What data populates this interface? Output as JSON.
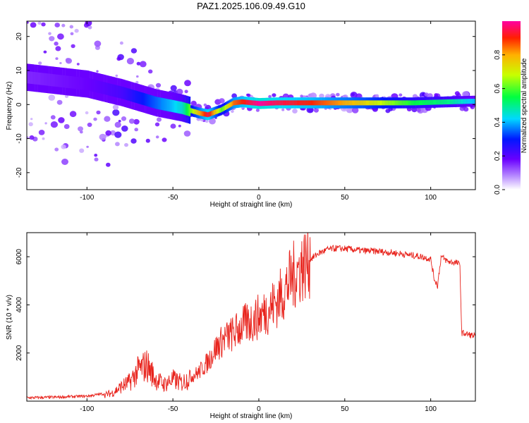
{
  "figure": {
    "title": "PAZ1.2025.106.09.49.G10"
  },
  "chart_data": [
    {
      "type": "heatmap",
      "xlabel": "Height of straight line (km)",
      "ylabel": "Frequency (Hz)",
      "xlim": [
        -135,
        126
      ],
      "ylim": [
        -25,
        24.5
      ],
      "xticks": [
        -100,
        -50,
        0,
        50,
        100
      ],
      "yticks": [
        -20,
        -10,
        0,
        10,
        20
      ],
      "colorbar": {
        "label": "Normalized spectral amplitude",
        "range": [
          0,
          1
        ],
        "ticks": [
          0.0,
          0.2,
          0.4,
          0.6,
          0.8
        ],
        "tick_labels": [
          "0.0",
          "0.2",
          "0.4",
          "0.6",
          "0.8"
        ]
      },
      "ridge": {
        "x": [
          -135,
          -100,
          -80,
          -60,
          -45,
          -35,
          -30,
          -22,
          -15,
          -10,
          0,
          10,
          30,
          60,
          90,
          110,
          126
        ],
        "frequency": [
          8,
          6,
          3.5,
          0.5,
          -1,
          -2.5,
          -3,
          -1.5,
          0.5,
          0.8,
          0.3,
          0.5,
          0.5,
          0.5,
          0.5,
          0.8,
          1
        ],
        "amplitude": [
          0.15,
          0.18,
          0.22,
          0.35,
          0.45,
          0.8,
          0.95,
          0.6,
          0.85,
          0.9,
          1.0,
          0.95,
          0.9,
          0.75,
          0.55,
          0.5,
          0.4
        ]
      }
    },
    {
      "type": "line",
      "xlabel": "Height of straight line (km)",
      "ylabel": "SNR (10 * v/v)",
      "xlim": [
        -135,
        126
      ],
      "ylim": [
        0,
        7000
      ],
      "xticks": [
        -100,
        -50,
        0,
        50,
        100
      ],
      "yticks": [
        2000,
        4000,
        6000
      ],
      "series": [
        {
          "color": "#e8231c",
          "x": [
            -135,
            -120,
            -100,
            -90,
            -85,
            -80,
            -75,
            -70,
            -65,
            -60,
            -55,
            -50,
            -45,
            -40,
            -35,
            -30,
            -25,
            -20,
            -15,
            -10,
            -5,
            0,
            5,
            10,
            15,
            20,
            25,
            30,
            35,
            40,
            45,
            50,
            55,
            60,
            70,
            80,
            90,
            95,
            100,
            102,
            104,
            106,
            110,
            115,
            117,
            118,
            120,
            126
          ],
          "values": [
            80,
            100,
            150,
            250,
            350,
            600,
            800,
            1300,
            1500,
            900,
            700,
            900,
            750,
            1000,
            1200,
            1600,
            2200,
            2600,
            2800,
            3100,
            3300,
            3500,
            3800,
            4100,
            4600,
            5200,
            5600,
            5900,
            6150,
            6300,
            6350,
            6330,
            6300,
            6250,
            6220,
            6150,
            6050,
            6000,
            5900,
            5100,
            4800,
            6000,
            5800,
            5750,
            5650,
            2850,
            2800,
            2700
          ]
        }
      ]
    }
  ]
}
